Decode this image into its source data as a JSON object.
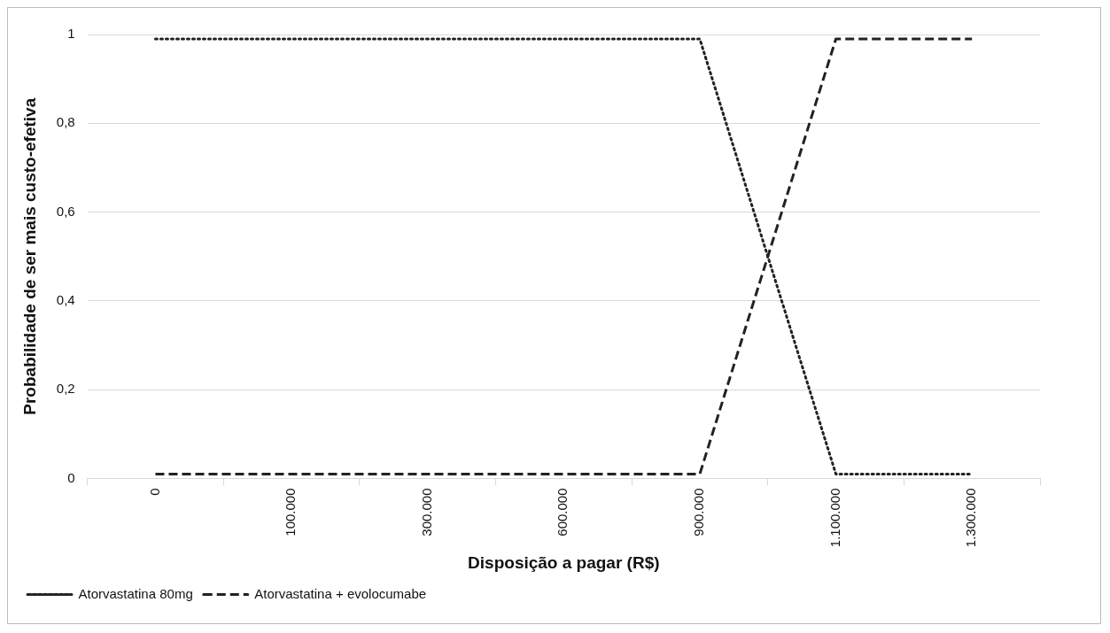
{
  "chart_data": {
    "type": "line",
    "xlabel": "Disposição a pagar (R$)",
    "ylabel": "Probabilidade de ser mais custo-efetiva",
    "categories": [
      "0",
      "100.000",
      "300.000",
      "600.000",
      "900.000",
      "1.100.000",
      "1.300.000"
    ],
    "series": [
      {
        "name": "Atorvastatina 80mg",
        "color": "#222222",
        "line_style": "dotted",
        "values": [
          0.99,
          0.99,
          0.99,
          0.99,
          0.99,
          0.01,
          0.01
        ]
      },
      {
        "name": "Atorvastatina + evolocumabe",
        "color": "#222222",
        "line_style": "dashed",
        "values": [
          0.01,
          0.01,
          0.01,
          0.01,
          0.01,
          0.99,
          0.99
        ]
      }
    ],
    "ylim": [
      0,
      1
    ],
    "yticks": [
      0,
      {
        "value": 0.2,
        "label": "0,2"
      },
      {
        "value": 0.4,
        "label": "0,4"
      },
      {
        "value": 0.6,
        "label": "0,6"
      },
      {
        "value": 0.8,
        "label": "0,8"
      },
      1
    ],
    "grid": "y",
    "legend": "bottom left",
    "marker": "none"
  }
}
